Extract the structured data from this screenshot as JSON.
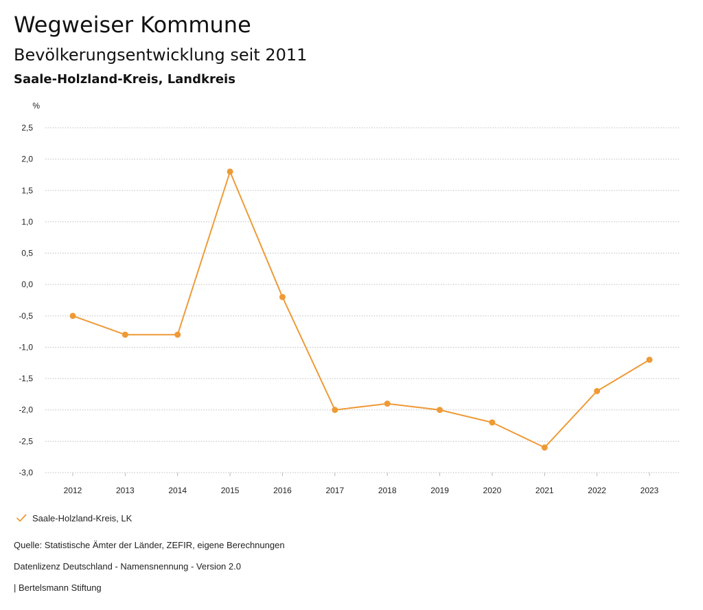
{
  "header": {
    "title": "Wegweiser Kommune",
    "subtitle": "Bevölkerungsentwicklung seit 2011",
    "region": "Saale-Holzland-Kreis, Landkreis"
  },
  "colors": {
    "series": "#ee9a36",
    "grid": "#b8b8b8",
    "axis_text": "#222222"
  },
  "legend": {
    "label": "Saale-Holzland-Kreis, LK",
    "icon": "checkmark-icon"
  },
  "footer": {
    "source": "Quelle: Statistische Ämter der Länder, ZEFIR, eigene Berechnungen",
    "license": "Datenlizenz Deutschland - Namensnennung - Version 2.0",
    "publisher": "| Bertelsmann Stiftung"
  },
  "chart_data": {
    "type": "line",
    "title": "Bevölkerungsentwicklung seit 2011",
    "xlabel": "",
    "ylabel": "%",
    "ylim": [
      -3.0,
      2.5
    ],
    "grid": true,
    "legend_placement": "bottom-left",
    "categories": [
      "2012",
      "2013",
      "2014",
      "2015",
      "2016",
      "2017",
      "2018",
      "2019",
      "2020",
      "2021",
      "2022",
      "2023"
    ],
    "y_ticks": [
      2.5,
      2.0,
      1.5,
      1.0,
      0.5,
      0.0,
      -0.5,
      -1.0,
      -1.5,
      -2.0,
      -2.5,
      -3.0
    ],
    "y_tick_labels": [
      "2,5",
      "2,0",
      "1,5",
      "1,0",
      "0,5",
      "0,0",
      "-0,5",
      "-1,0",
      "-1,5",
      "-2,0",
      "-2,5",
      "-3,0"
    ],
    "series": [
      {
        "name": "Saale-Holzland-Kreis, LK",
        "values": [
          -0.5,
          -0.8,
          -0.8,
          1.8,
          -0.2,
          -2.0,
          -1.9,
          -2.0,
          -2.2,
          -2.6,
          -1.7,
          -1.2
        ]
      }
    ]
  }
}
